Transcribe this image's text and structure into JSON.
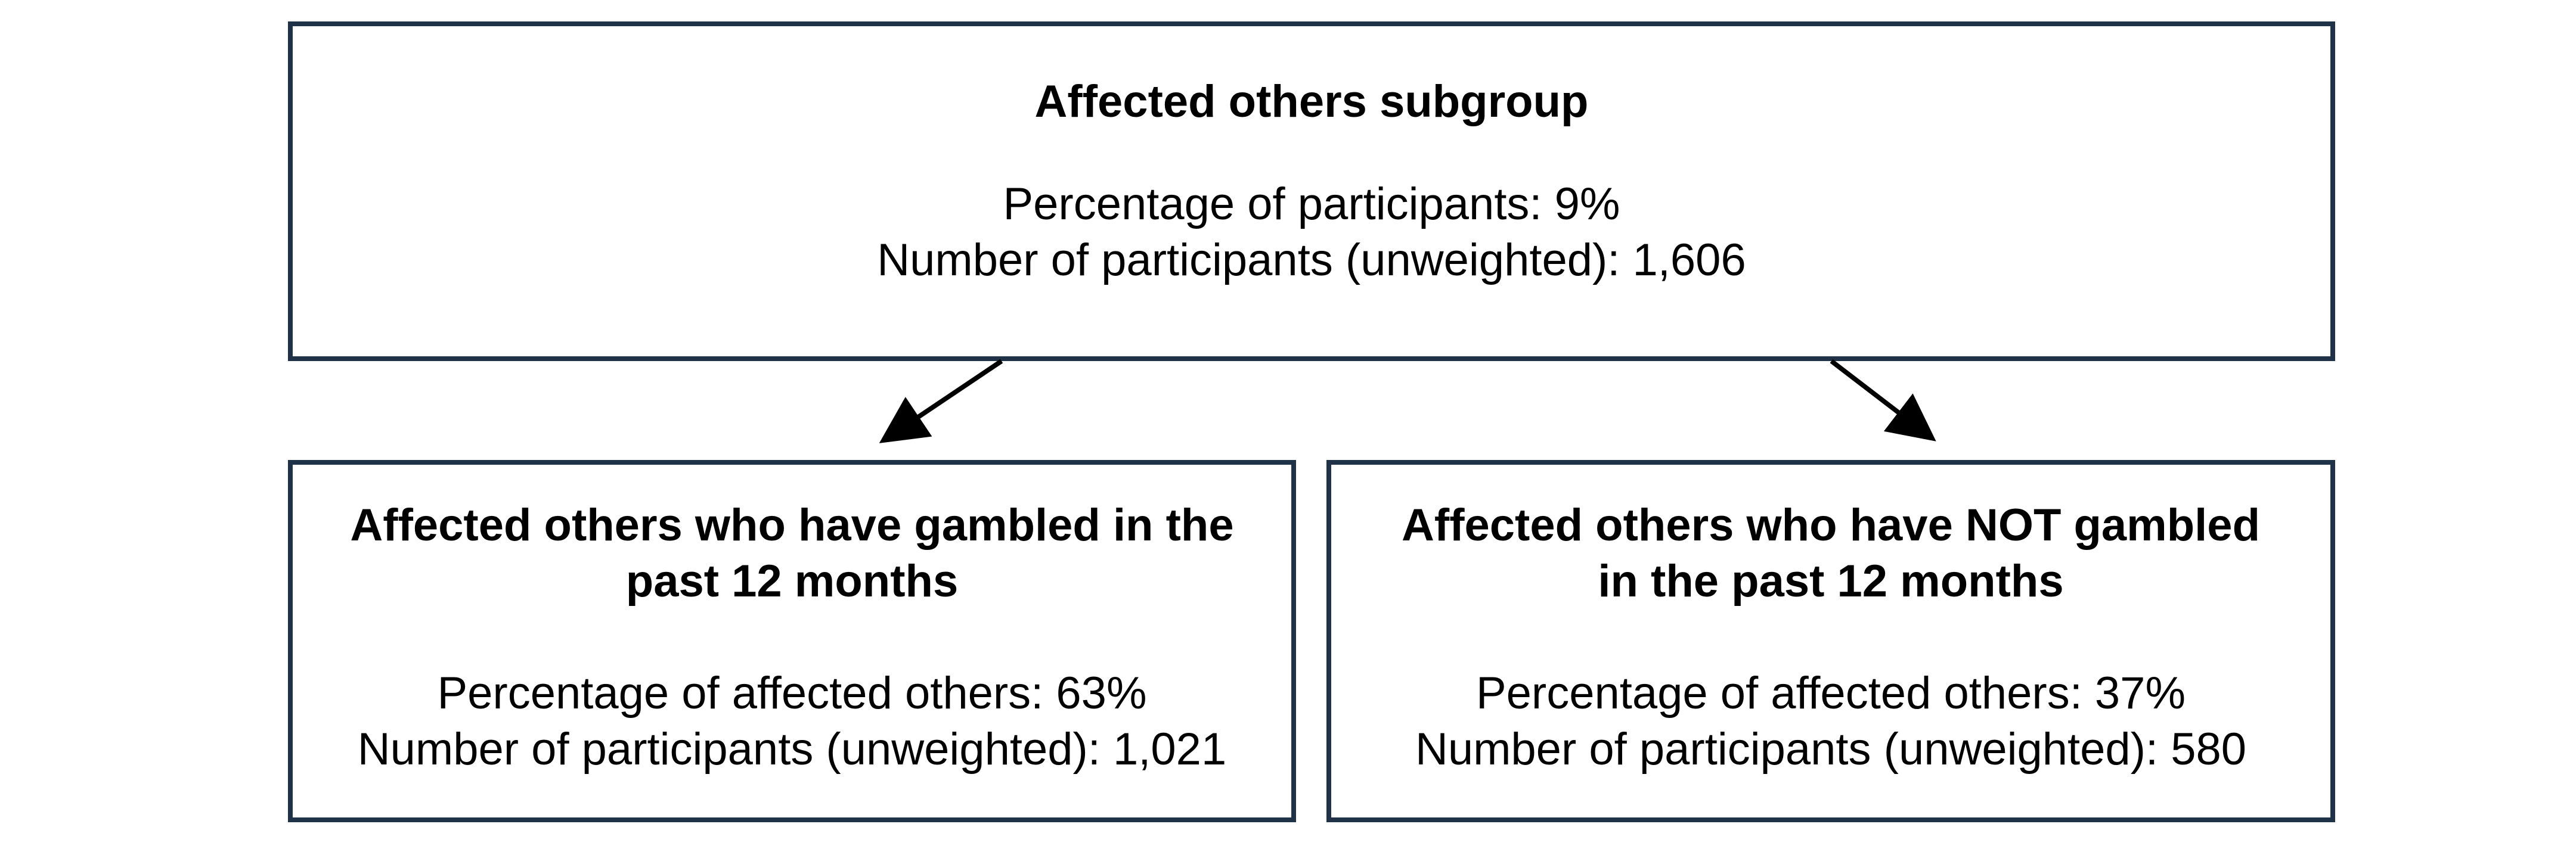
{
  "colors": {
    "box_border": "#1f3247",
    "arrow": "#000000"
  },
  "top": {
    "title": "Affected others subgroup",
    "line1": "Percentage of participants: 9%",
    "line2": "Number of participants (unweighted): 1,606"
  },
  "left": {
    "title": "Affected others who have gambled in the past 12 months",
    "line1": "Percentage of affected others: 63%",
    "line2": "Number of participants (unweighted): 1,021"
  },
  "right": {
    "title": "Affected others who have NOT gambled in the past 12 months",
    "line1": "Percentage of affected others: 37%",
    "line2": "Number of participants (unweighted): 580"
  }
}
